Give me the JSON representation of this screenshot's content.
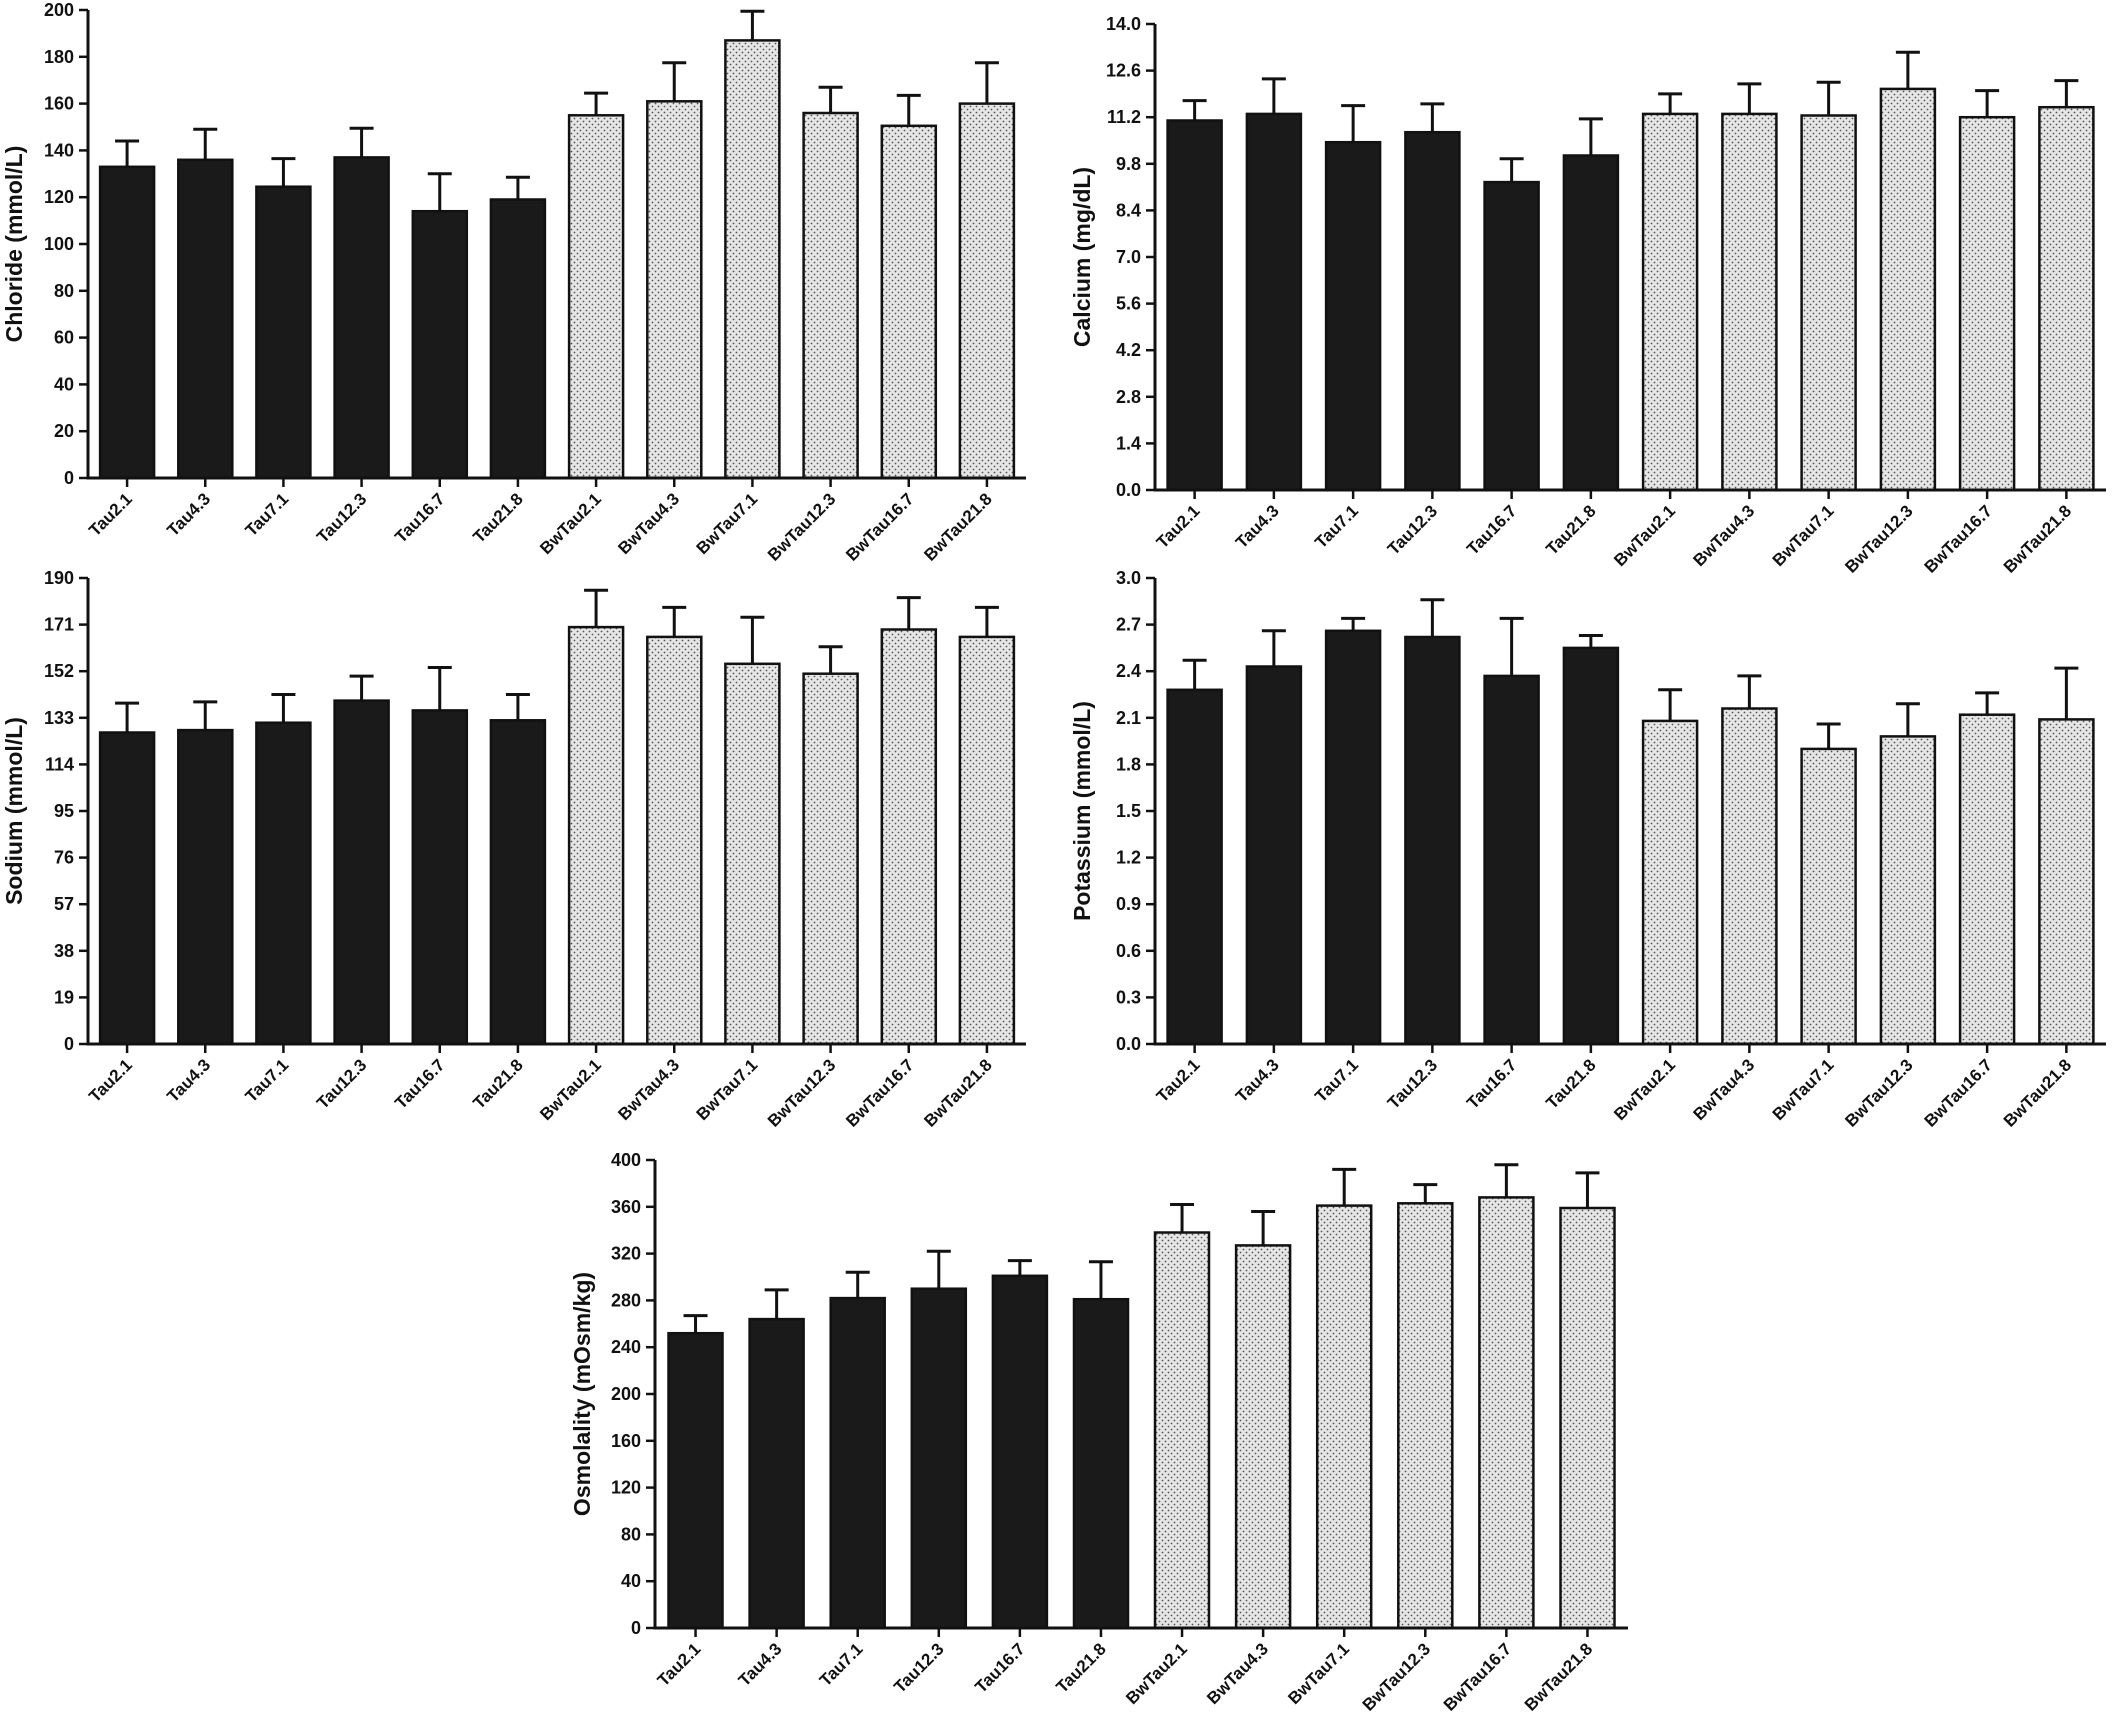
{
  "chart_data": [
    {
      "type": "bar",
      "ylabel": "Chloride (mmol/L)",
      "categories": [
        "Tau2.1",
        "Tau4.3",
        "Tau7.1",
        "Tau12.3",
        "Tau16.7",
        "Tau21.8",
        "BwTau2.1",
        "BwTau4.3",
        "BwTau7.1",
        "BwTau12.3",
        "BwTau16.7",
        "BwTau21.8"
      ],
      "values": [
        133,
        136,
        124.5,
        137,
        114,
        119,
        155,
        161,
        187,
        156,
        150.5,
        160
      ],
      "errors": [
        11,
        13,
        12,
        12.5,
        16,
        9.5,
        9.5,
        16.5,
        12.5,
        11,
        13,
        17.5
      ],
      "ylim": [
        0,
        200
      ],
      "yticks": [
        "0",
        "20",
        "40",
        "60",
        "80",
        "100",
        "120",
        "140",
        "160",
        "180",
        "200"
      ]
    },
    {
      "type": "bar",
      "ylabel": "Calcium (mg/dL)",
      "categories": [
        "Tau2.1",
        "Tau4.3",
        "Tau7.1",
        "Tau12.3",
        "Tau16.7",
        "Tau21.8",
        "BwTau2.1",
        "BwTau4.3",
        "BwTau7.1",
        "BwTau12.3",
        "BwTau16.7",
        "BwTau21.8"
      ],
      "values": [
        11.1,
        11.3,
        10.45,
        10.75,
        9.25,
        10.05,
        11.3,
        11.3,
        11.25,
        12.05,
        11.2,
        11.5
      ],
      "errors": [
        0.6,
        1.05,
        1.1,
        0.85,
        0.7,
        1.1,
        0.6,
        0.9,
        1.0,
        1.1,
        0.8,
        0.8
      ],
      "ylim": [
        0,
        14
      ],
      "yticks": [
        "0.0",
        "1.4",
        "2.8",
        "4.2",
        "5.6",
        "7.0",
        "8.4",
        "9.8",
        "11.2",
        "12.6",
        "14.0"
      ]
    },
    {
      "type": "bar",
      "ylabel": "Sodium (mmol/L)",
      "categories": [
        "Tau2.1",
        "Tau4.3",
        "Tau7.1",
        "Tau12.3",
        "Tau16.7",
        "Tau21.8",
        "BwTau2.1",
        "BwTau4.3",
        "BwTau7.1",
        "BwTau12.3",
        "BwTau16.7",
        "BwTau21.8"
      ],
      "values": [
        127,
        128,
        131,
        140,
        136,
        132,
        170,
        166,
        155,
        151,
        169,
        166
      ],
      "errors": [
        12,
        11.5,
        11.5,
        10,
        17.5,
        10.5,
        15,
        12,
        19,
        11,
        13,
        12
      ],
      "ylim": [
        0,
        190
      ],
      "yticks": [
        "0",
        "19",
        "38",
        "57",
        "76",
        "95",
        "114",
        "133",
        "152",
        "171",
        "190"
      ]
    },
    {
      "type": "bar",
      "ylabel": "Potassium (mmol/L)",
      "categories": [
        "Tau2.1",
        "Tau4.3",
        "Tau7.1",
        "Tau12.3",
        "Tau16.7",
        "Tau21.8",
        "BwTau2.1",
        "BwTau4.3",
        "BwTau7.1",
        "BwTau12.3",
        "BwTau16.7",
        "BwTau21.8"
      ],
      "values": [
        2.28,
        2.43,
        2.66,
        2.62,
        2.37,
        2.55,
        2.08,
        2.16,
        1.9,
        1.98,
        2.12,
        2.09
      ],
      "errors": [
        0.19,
        0.23,
        0.08,
        0.24,
        0.37,
        0.08,
        0.2,
        0.21,
        0.16,
        0.21,
        0.14,
        0.33
      ],
      "ylim": [
        0,
        3.0
      ],
      "yticks": [
        "0.0",
        "0.3",
        "0.6",
        "0.9",
        "1.2",
        "1.5",
        "1.8",
        "2.1",
        "2.4",
        "2.7",
        "3.0"
      ]
    },
    {
      "type": "bar",
      "ylabel": "Osmolality (mOsm/kg)",
      "categories": [
        "Tau2.1",
        "Tau4.3",
        "Tau7.1",
        "Tau12.3",
        "Tau16.7",
        "Tau21.8",
        "BwTau2.1",
        "BwTau4.3",
        "BwTau7.1",
        "BwTau12.3",
        "BwTau16.7",
        "BwTau21.8"
      ],
      "values": [
        252,
        264,
        282,
        290,
        301,
        281,
        338,
        327,
        361,
        363,
        368,
        359
      ],
      "errors": [
        15,
        25,
        22,
        32,
        13,
        32,
        24,
        29,
        31,
        16,
        28,
        30
      ],
      "ylim": [
        0,
        400
      ],
      "yticks": [
        "0",
        "40",
        "80",
        "120",
        "160",
        "200",
        "240",
        "280",
        "320",
        "360",
        "400"
      ]
    }
  ],
  "style": {
    "solid_fill": "#1a1a1a",
    "stipple_fill": "#e6e6e6",
    "stroke": "#111111"
  }
}
